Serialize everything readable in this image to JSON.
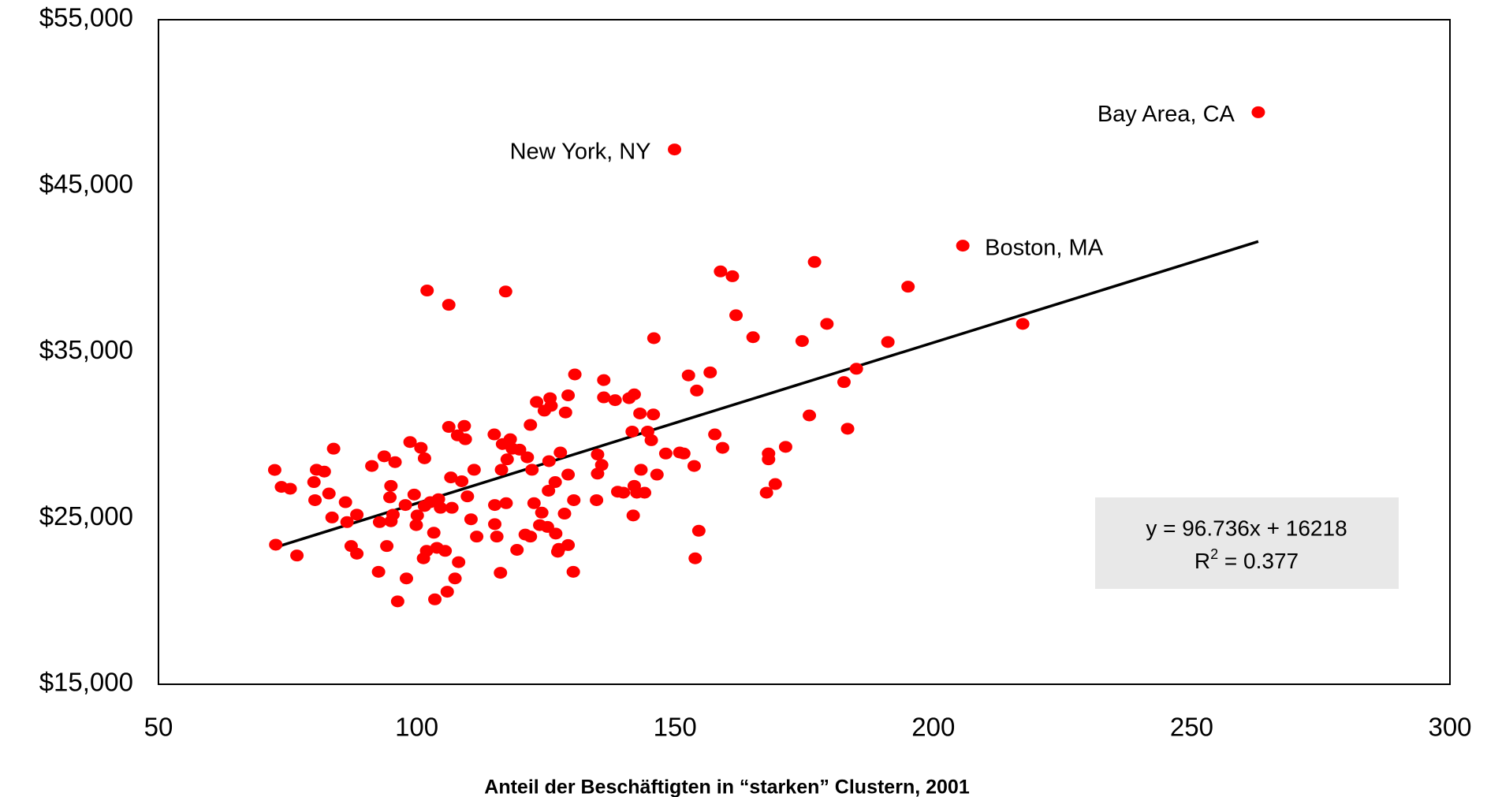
{
  "chart_data": {
    "type": "scatter",
    "x_label": "Anteil der Beschäftigten in “starken” Clustern, 2001",
    "color": "#ff0000",
    "x": [
      72.5,
      72.7,
      73.8,
      75.5,
      76.8,
      80.1,
      80.6,
      82.1,
      80.3,
      83.0,
      83.9,
      83.6,
      86.2,
      86.5,
      87.3,
      88.4,
      88.4,
      91.3,
      92.6,
      92.8,
      93.7,
      94.2,
      94.8,
      95.0,
      95.0,
      95.4,
      95.8,
      96.3,
      97.8,
      98.0,
      98.7,
      99.5,
      99.9,
      100.1,
      100.8,
      101.3,
      101.5,
      101.5,
      101.9,
      102.0,
      102.6,
      103.3,
      103.5,
      103.9,
      104.2,
      104.6,
      105.5,
      105.9,
      106.2,
      106.2,
      106.6,
      106.8,
      107.4,
      107.9,
      108.1,
      108.7,
      109.2,
      109.4,
      109.8,
      110.5,
      111.1,
      111.6,
      115.0,
      115.1,
      115.1,
      115.5,
      116.2,
      116.4,
      116.6,
      117.2,
      117.3,
      117.5,
      118.1,
      118.5,
      119.4,
      119.9,
      121.0,
      121.4,
      122.0,
      122.0,
      122.3,
      122.7,
      123.2,
      123.8,
      124.2,
      124.7,
      125.3,
      125.5,
      125.6,
      125.8,
      126.0,
      126.8,
      126.9,
      127.3,
      127.5,
      127.8,
      128.6,
      128.8,
      129.3,
      129.3,
      129.3,
      130.3,
      130.4,
      130.6,
      134.8,
      135.0,
      135.0,
      135.8,
      136.2,
      136.2,
      138.4,
      138.9,
      140.0,
      141.1,
      141.7,
      141.9,
      142.1,
      142.1,
      142.6,
      143.2,
      143.4,
      144.1,
      144.7,
      145.4,
      145.8,
      145.9,
      146.5,
      148.2,
      150.9,
      151.7,
      152.6,
      153.7,
      153.9,
      154.2,
      154.6,
      156.8,
      157.7,
      158.8,
      159.2,
      161.1,
      161.8,
      165.1,
      167.7,
      168.1,
      168.1,
      169.4,
      171.4,
      174.6,
      176.0,
      177.0,
      179.4,
      182.7,
      183.4,
      185.1,
      191.2,
      195.1,
      217.3
    ],
    "values": [
      27900,
      23400,
      26880,
      26770,
      22750,
      27170,
      27910,
      27800,
      26080,
      26480,
      29180,
      25040,
      25960,
      24760,
      23320,
      25210,
      22860,
      28140,
      21770,
      24760,
      28720,
      23320,
      26250,
      26940,
      24810,
      25210,
      28370,
      19990,
      25790,
      21370,
      29580,
      26420,
      24580,
      25160,
      29230,
      22580,
      28600,
      25730,
      23030,
      38700,
      25960,
      24120,
      20110,
      23210,
      26140,
      25620,
      23030,
      20570,
      30490,
      37840,
      27450,
      25620,
      21370,
      29980,
      22350,
      27220,
      30550,
      29750,
      26310,
      24930,
      27910,
      23890,
      30040,
      25790,
      24640,
      23890,
      21710,
      27910,
      29460,
      38640,
      25900,
      28540,
      29750,
      29180,
      23090,
      29120,
      24010,
      28660,
      30610,
      23890,
      27910,
      25900,
      31990,
      24580,
      25330,
      31470,
      24470,
      26650,
      28430,
      32220,
      31760,
      27170,
      24070,
      22980,
      23150,
      28950,
      25270,
      31360,
      32390,
      27620,
      23380,
      21770,
      26080,
      33650,
      26080,
      27680,
      28830,
      28200,
      33310,
      32270,
      32100,
      26590,
      26530,
      32220,
      30210,
      25160,
      32450,
      26940,
      26530,
      31300,
      27910,
      26530,
      30210,
      29690,
      31240,
      35830,
      27620,
      28890,
      28950,
      28890,
      33590,
      28140,
      22580,
      32680,
      24240,
      33770,
      30040,
      39850,
      29230,
      39560,
      37210,
      35890,
      26530,
      28890,
      28540,
      27050,
      29290,
      35660,
      31180,
      40420,
      36690,
      33190,
      30380,
      33990,
      35600,
      38930,
      36690
    ],
    "annotations": [
      {
        "text": "New York, NY",
        "x": 149.9,
        "y": 47190
      },
      {
        "text": "Boston, MA",
        "x": 205.7,
        "y": 41400
      },
      {
        "text": "Bay Area,  CA",
        "x": 262.9,
        "y": 49430
      }
    ],
    "trendline": {
      "slope": 96.736,
      "intercept": 16218,
      "x_range": [
        72.5,
        262.9
      ],
      "color": "#000000",
      "equation": "y = 96.736x + 16218",
      "r2_prefix": "R",
      "r2_superscript": "2",
      "r2_text": " = 0.377"
    },
    "xlim": [
      50,
      300
    ],
    "xticks": [
      50,
      100,
      150,
      200,
      250,
      300
    ],
    "ylim": [
      15000,
      55000
    ],
    "yticks": [
      {
        "value": 15000,
        "label": "$15,000"
      },
      {
        "value": 25000,
        "label": "$25,000"
      },
      {
        "value": 35000,
        "label": "$35,000"
      },
      {
        "value": 45000,
        "label": "$45,000"
      },
      {
        "value": 55000,
        "label": "$55,000"
      }
    ]
  }
}
